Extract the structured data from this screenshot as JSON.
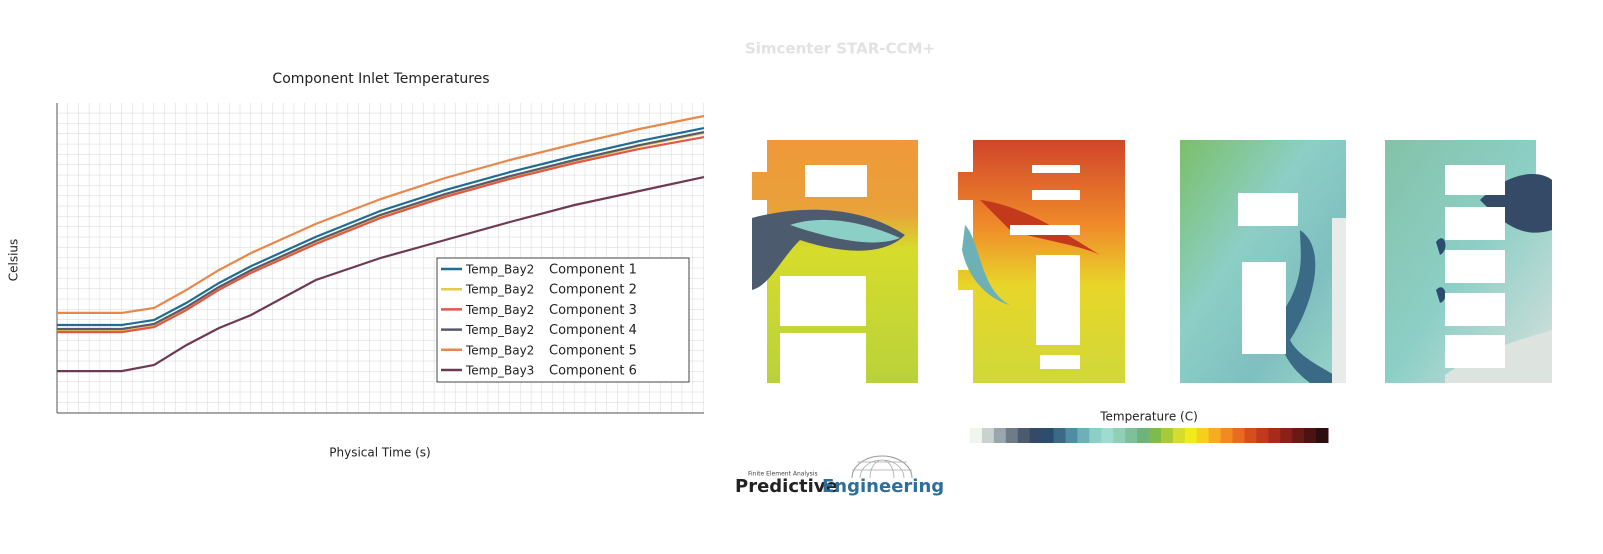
{
  "chart_data": {
    "type": "line",
    "title": "Component Inlet Temperatures",
    "xlabel": "Physical Time (s)",
    "ylabel": "Celsius",
    "grid": true,
    "legend": "lower right",
    "x": [
      0,
      10,
      15,
      20,
      25,
      30,
      40,
      50,
      60,
      70,
      80,
      90,
      100
    ],
    "xlim": [
      0,
      100
    ],
    "ylim": [
      0,
      100
    ],
    "series": [
      {
        "name": "Temp_Bay2",
        "component": "Component 1",
        "color": "#1f6e91",
        "values": [
          28.4,
          28.4,
          30.0,
          35.5,
          41.9,
          47.4,
          56.8,
          65.2,
          71.9,
          77.7,
          82.9,
          87.7,
          91.9
        ]
      },
      {
        "name": "Temp_Bay2",
        "component": "Component 2",
        "color": "#e6c84a",
        "values": [
          26.8,
          26.8,
          28.4,
          33.9,
          40.3,
          45.8,
          55.2,
          63.6,
          70.3,
          76.1,
          81.3,
          86.1,
          90.3
        ]
      },
      {
        "name": "Temp_Bay2",
        "component": "Component 3",
        "color": "#e0584a",
        "values": [
          26.1,
          26.1,
          27.7,
          33.2,
          39.7,
          45.2,
          54.5,
          62.9,
          69.7,
          75.5,
          80.6,
          85.2,
          89.0
        ]
      },
      {
        "name": "Temp_Bay2",
        "component": "Component 4",
        "color": "#5a5a6e",
        "values": [
          27.1,
          27.1,
          28.7,
          34.2,
          40.6,
          46.1,
          55.5,
          63.9,
          70.6,
          76.4,
          81.6,
          86.4,
          90.6
        ]
      },
      {
        "name": "Temp_Bay2",
        "component": "Component 5",
        "color": "#e8874a",
        "values": [
          32.3,
          32.3,
          33.9,
          39.7,
          46.1,
          51.6,
          61.0,
          69.0,
          75.8,
          81.6,
          86.8,
          91.6,
          95.8
        ]
      },
      {
        "name": "Temp_Bay3",
        "component": "Component 6",
        "color": "#6e3a52",
        "values": [
          13.5,
          13.5,
          15.5,
          21.9,
          27.4,
          31.6,
          42.9,
          50.0,
          55.8,
          61.6,
          67.1,
          71.6,
          76.1
        ]
      }
    ]
  },
  "header": {
    "title": "Simcenter STAR-CCM+"
  },
  "colorbar": {
    "title": "Temperature (C)",
    "colors": [
      "#f0f5ee",
      "#c9d2cf",
      "#9aa6ad",
      "#6f7c88",
      "#4d5b6e",
      "#344a66",
      "#2b4d6e",
      "#3a6a86",
      "#4f8ea2",
      "#6db0b7",
      "#8ccfc6",
      "#9fdcd0",
      "#8fcfb6",
      "#7dc09a",
      "#6cb37c",
      "#7fba4f",
      "#a8c93a",
      "#d6dc2c",
      "#f3ea1e",
      "#f6cf1c",
      "#f6ac20",
      "#f28a22",
      "#e86a23",
      "#d84d20",
      "#c3391c",
      "#a92a1a",
      "#8a2116",
      "#6a1a14",
      "#4a1412",
      "#2d0d0e"
    ]
  },
  "logo": {
    "tagline": "Finite Element Analysis",
    "word1": "Predictive",
    "word2": "Engineering"
  }
}
